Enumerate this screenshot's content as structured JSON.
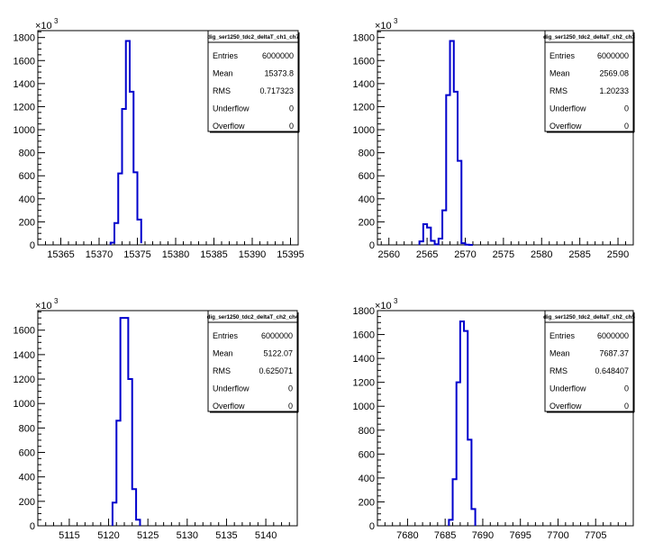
{
  "chart_data": [
    {
      "type": "histogram",
      "exponent_label": "×10",
      "exponent": "3",
      "stats": {
        "title": "dig_ser1250_tdc2_deltaT_ch1_ch7",
        "rows": [
          {
            "label": "Entries",
            "value": "6000000"
          },
          {
            "label": "Mean",
            "value": "15373.8"
          },
          {
            "label": "RMS",
            "value": "0.717323"
          },
          {
            "label": "Underflow",
            "value": "0"
          },
          {
            "label": "Overflow",
            "value": "0"
          }
        ]
      },
      "xlim": [
        15362,
        15396
      ],
      "ylim": [
        0,
        1860
      ],
      "xticks": [
        15365,
        15370,
        15375,
        15380,
        15385,
        15390,
        15395
      ],
      "yticks": [
        0,
        200,
        400,
        600,
        800,
        1000,
        1200,
        1400,
        1600,
        1800
      ],
      "bin_edges": [
        15371.5,
        15372,
        15372.5,
        15373,
        15373.5,
        15374,
        15374.5,
        15375,
        15375.5
      ],
      "values": [
        20,
        190,
        620,
        1180,
        1770,
        1330,
        630,
        220,
        15
      ]
    },
    {
      "type": "histogram",
      "exponent_label": "×10",
      "exponent": "3",
      "stats": {
        "title": "dig_ser1250_tdc2_deltaT_ch2_ch3",
        "rows": [
          {
            "label": "Entries",
            "value": "6000000"
          },
          {
            "label": "Mean",
            "value": "2569.08"
          },
          {
            "label": "RMS",
            "value": "1.20233"
          },
          {
            "label": "Underflow",
            "value": "0"
          },
          {
            "label": "Overflow",
            "value": "0"
          }
        ]
      },
      "xlim": [
        2558.5,
        2592
      ],
      "ylim": [
        0,
        1860
      ],
      "xticks": [
        2560,
        2565,
        2570,
        2575,
        2580,
        2585,
        2590
      ],
      "yticks": [
        0,
        200,
        400,
        600,
        800,
        1000,
        1200,
        1400,
        1600,
        1800
      ],
      "bin_edges": [
        2564,
        2564.5,
        2565,
        2565.5,
        2566,
        2566.5,
        2567,
        2567.5,
        2568,
        2568.5,
        2569,
        2569.5,
        2570,
        2570.5,
        2571
      ],
      "values": [
        30,
        180,
        150,
        35,
        5,
        55,
        300,
        1300,
        1770,
        1330,
        730,
        15,
        2,
        0
      ]
    },
    {
      "type": "histogram",
      "exponent_label": "×10",
      "exponent": "3",
      "stats": {
        "title": "dig_ser1250_tdc2_deltaT_ch2_ch4",
        "rows": [
          {
            "label": "Entries",
            "value": "6000000"
          },
          {
            "label": "Mean",
            "value": "5122.07"
          },
          {
            "label": "RMS",
            "value": "0.625071"
          },
          {
            "label": "Underflow",
            "value": "0"
          },
          {
            "label": "Overflow",
            "value": "0"
          }
        ]
      },
      "xlim": [
        5111,
        5144
      ],
      "ylim": [
        0,
        1760
      ],
      "xticks": [
        5115,
        5120,
        5125,
        5130,
        5135,
        5140
      ],
      "yticks": [
        0,
        200,
        400,
        600,
        800,
        1000,
        1200,
        1400,
        1600
      ],
      "bin_edges": [
        5120.5,
        5121,
        5121.5,
        5122,
        5122.5,
        5123,
        5123.5,
        5124
      ],
      "values": [
        190,
        860,
        1700,
        1700,
        1200,
        300,
        50
      ]
    },
    {
      "type": "histogram",
      "exponent_label": "×10",
      "exponent": "3",
      "stats": {
        "title": "dig_ser1250_tdc2_deltaT_ch2_ch5",
        "rows": [
          {
            "label": "Entries",
            "value": "6000000"
          },
          {
            "label": "Mean",
            "value": "7687.37"
          },
          {
            "label": "RMS",
            "value": "0.648407"
          },
          {
            "label": "Underflow",
            "value": "0"
          },
          {
            "label": "Overflow",
            "value": "0"
          }
        ]
      },
      "xlim": [
        7676,
        7710
      ],
      "ylim": [
        0,
        1800
      ],
      "xticks": [
        7680,
        7685,
        7690,
        7695,
        7700,
        7705
      ],
      "yticks": [
        0,
        200,
        400,
        600,
        800,
        1000,
        1200,
        1400,
        1600,
        1800
      ],
      "bin_edges": [
        7685.5,
        7686,
        7686.5,
        7687,
        7687.5,
        7688,
        7688.5,
        7689
      ],
      "values": [
        50,
        390,
        1200,
        1710,
        1630,
        720,
        140
      ]
    }
  ]
}
